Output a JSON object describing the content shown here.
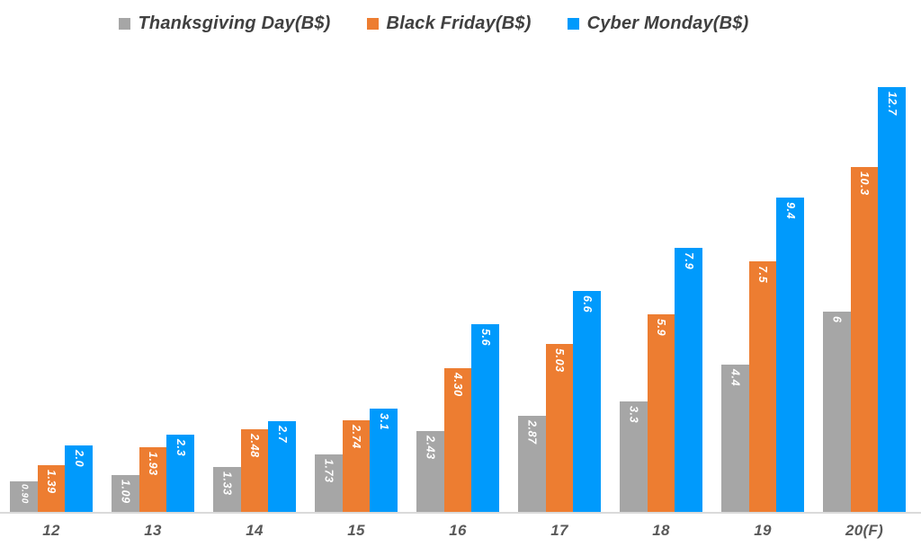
{
  "chart_data": {
    "type": "bar",
    "title": "",
    "xlabel": "",
    "ylabel": "",
    "categories": [
      "12",
      "13",
      "14",
      "15",
      "16",
      "17",
      "18",
      "19",
      "20(F)"
    ],
    "series": [
      {
        "name": "Thanksgiving Day(B$)",
        "color": "#A6A6A6",
        "values": [
          0.9,
          1.09,
          1.33,
          1.73,
          2.43,
          2.87,
          3.3,
          4.4,
          6
        ],
        "labels": [
          "0.90",
          "1.09",
          "1.33",
          "1.73",
          "2.43",
          "2.87",
          "3.3",
          "4.4",
          "6"
        ]
      },
      {
        "name": "Black Friday(B$)",
        "color": "#ED7D31",
        "values": [
          1.39,
          1.93,
          2.48,
          2.74,
          4.3,
          5.03,
          5.9,
          7.5,
          10.3
        ],
        "labels": [
          "1.39",
          "1.93",
          "2.48",
          "2.74",
          "4.30",
          "5.03",
          "5.9",
          "7.5",
          "10.3"
        ]
      },
      {
        "name": "Cyber Monday(B$)",
        "color": "#009AFC",
        "values": [
          2.0,
          2.3,
          2.7,
          3.1,
          5.6,
          6.6,
          7.9,
          9.4,
          12.7
        ],
        "labels": [
          "2.0",
          "2.3",
          "2.7",
          "3.1",
          "5.6",
          "6.6",
          "7.9",
          "9.4",
          "12.7"
        ]
      }
    ],
    "ylim": [
      0,
      13.3
    ],
    "grid": false,
    "legend_position": "top",
    "value_labels": "inside-end-rotated-vertical",
    "colors": {
      "axis_line": "#DADADA",
      "category_label": "#595959",
      "legend_text": "#404040",
      "value_label": "#FFFFFF",
      "background": "#FFFFFF"
    }
  }
}
